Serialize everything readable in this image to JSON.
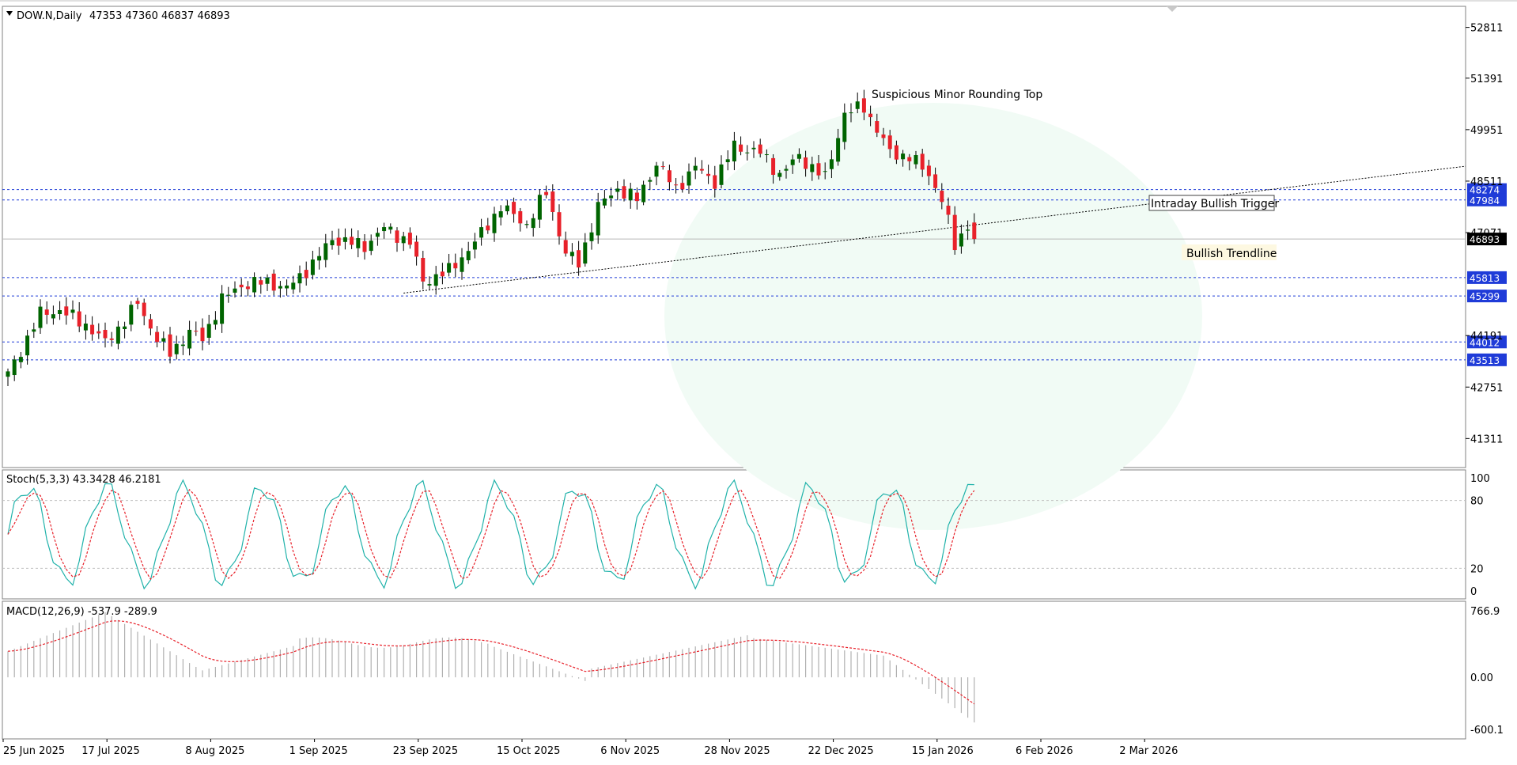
{
  "header": {
    "symbol": "DOW.N,Daily",
    "ohlc": "47353 47360 46837 46893"
  },
  "colors": {
    "up": "#006400",
    "down": "#e8212a",
    "level": "#1f3bd8",
    "stoch_main": "#20b2aa",
    "stoch_signal": "#e8212a",
    "macd_hist": "#b0b0b0",
    "macd_signal": "#e8212a",
    "ellipse": "#f1fbf5"
  },
  "chart_data": [
    {
      "type": "candlestick",
      "ylim": [
        40500,
        53400
      ],
      "y_ticks": [
        52811,
        51391,
        49951,
        48511,
        47071,
        44191,
        42751,
        41311
      ],
      "levels": [
        48274,
        47984,
        45813,
        45299,
        44012,
        43513
      ],
      "current_price": 46893,
      "annotations": {
        "rounding_top": "Suspicious Minor Rounding Top",
        "trigger": "Intraday Bullish Trigger",
        "trendline": "Bullish Trendline"
      },
      "date_labels": [
        "25 Jun 2025",
        "17 Jul 2025",
        "8 Aug 2025",
        "1 Sep 2025",
        "23 Sep 2025",
        "15 Oct 2025",
        "6 Nov 2025",
        "28 Nov 2025",
        "22 Dec 2025",
        "15 Jan 2026",
        "6 Feb 2026",
        "2 Mar 2026"
      ]
    },
    {
      "type": "line",
      "name": "Stochastic",
      "label": "Stoch(5,3,3) 43.3428 46.2181",
      "ylim": [
        0,
        100
      ],
      "y_ticks": [
        100,
        80,
        20,
        0
      ]
    },
    {
      "type": "bar",
      "name": "MACD",
      "label": "MACD(12,26,9) -537.9 -289.9",
      "y_ticks": [
        "766.9",
        "0.00",
        "-600.1"
      ]
    }
  ]
}
